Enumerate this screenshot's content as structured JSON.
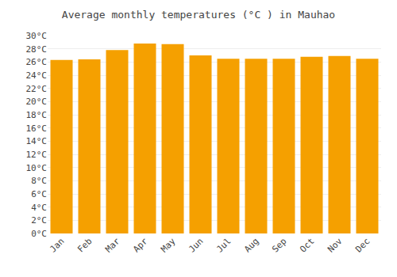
{
  "chart_data": {
    "type": "bar",
    "title": "Average monthly temperatures (°C ) in Mauhao",
    "categories": [
      "Jan",
      "Feb",
      "Mar",
      "Apr",
      "May",
      "Jun",
      "Jul",
      "Aug",
      "Sep",
      "Oct",
      "Nov",
      "Dec"
    ],
    "values": [
      26.3,
      26.4,
      27.8,
      28.8,
      28.7,
      27.0,
      26.5,
      26.5,
      26.5,
      26.8,
      26.9,
      26.5
    ],
    "color": "#F5A000",
    "ylim": [
      0,
      30
    ],
    "yticks": [
      {
        "value": 0,
        "label": "0°C"
      },
      {
        "value": 2,
        "label": "2°C"
      },
      {
        "value": 4,
        "label": "4°C"
      },
      {
        "value": 6,
        "label": "6°C"
      },
      {
        "value": 8,
        "label": "8°C"
      },
      {
        "value": 10,
        "label": "10°C"
      },
      {
        "value": 12,
        "label": "12°C"
      },
      {
        "value": 14,
        "label": "14°C"
      },
      {
        "value": 16,
        "label": "16°C"
      },
      {
        "value": 18,
        "label": "18°C"
      },
      {
        "value": 20,
        "label": "20°C"
      },
      {
        "value": 22,
        "label": "22°C"
      },
      {
        "value": 24,
        "label": "24°C"
      },
      {
        "value": 26,
        "label": "26°C"
      },
      {
        "value": 28,
        "label": "28°C"
      },
      {
        "value": 30,
        "label": "30°C"
      }
    ],
    "grid": true
  }
}
